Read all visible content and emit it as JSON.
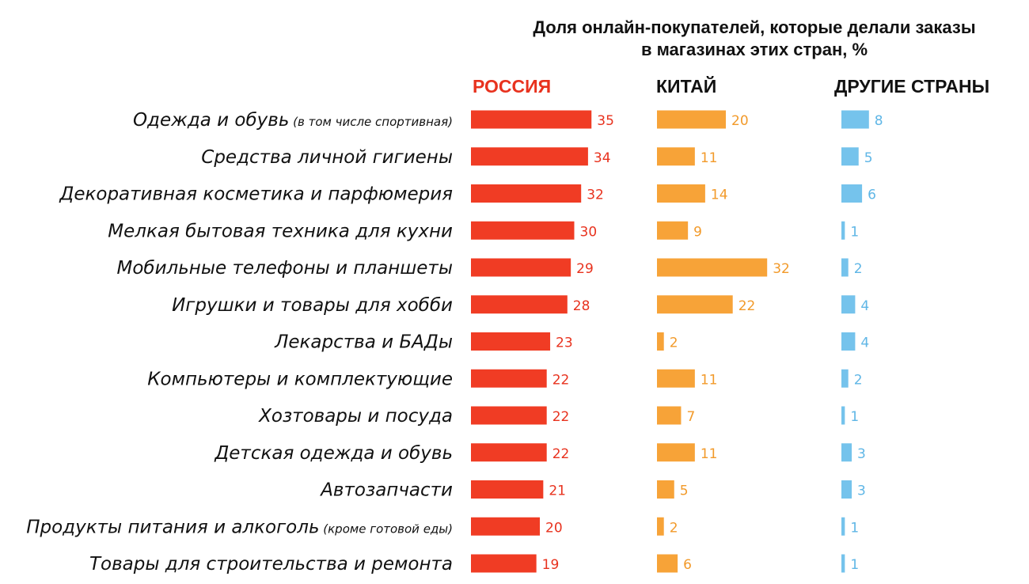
{
  "chart_data": {
    "type": "bar",
    "title": "Доля онлайн-покупателей, которые делали заказы",
    "subtitle": "в магазинах этих стран, %",
    "categories": [
      {
        "main": "Одежда и обувь",
        "note": "(в том числе спортивная)"
      },
      {
        "main": "Средства личной гигиены",
        "note": ""
      },
      {
        "main": "Декоративная косметика и парфюмерия",
        "note": ""
      },
      {
        "main": "Мелкая бытовая техника для кухни",
        "note": ""
      },
      {
        "main": "Мобильные телефоны и планшеты",
        "note": ""
      },
      {
        "main": "Игрушки и товары для хобби",
        "note": ""
      },
      {
        "main": "Лекарства и БАДы",
        "note": ""
      },
      {
        "main": "Компьютеры и комплектующие",
        "note": ""
      },
      {
        "main": "Хозтовары и посуда",
        "note": ""
      },
      {
        "main": "Детская одежда и обувь",
        "note": ""
      },
      {
        "main": "Автозапчасти",
        "note": ""
      },
      {
        "main": "Продукты питания и алкоголь",
        "note": "(кроме готовой еды)"
      },
      {
        "main": "Товары для строительства и ремонта",
        "note": ""
      }
    ],
    "series": [
      {
        "name": "РОССИЯ",
        "color": "#f03c24",
        "label_color": "#e8321e",
        "values": [
          35,
          34,
          32,
          30,
          29,
          28,
          23,
          22,
          22,
          22,
          21,
          20,
          19
        ]
      },
      {
        "name": "КИТАЙ",
        "color": "#f7a338",
        "label_color": "#f29a2a",
        "values": [
          20,
          11,
          14,
          9,
          32,
          22,
          2,
          11,
          7,
          11,
          5,
          2,
          6
        ]
      },
      {
        "name": "ДРУГИЕ СТРАНЫ",
        "color": "#75c3ec",
        "label_color": "#5fb6e6",
        "values": [
          8,
          5,
          6,
          1,
          2,
          4,
          4,
          2,
          1,
          3,
          3,
          1,
          1
        ]
      }
    ],
    "value_axis": {
      "min": 0,
      "max": 35,
      "unit": "%"
    },
    "grid": false,
    "legend": "column headers"
  }
}
